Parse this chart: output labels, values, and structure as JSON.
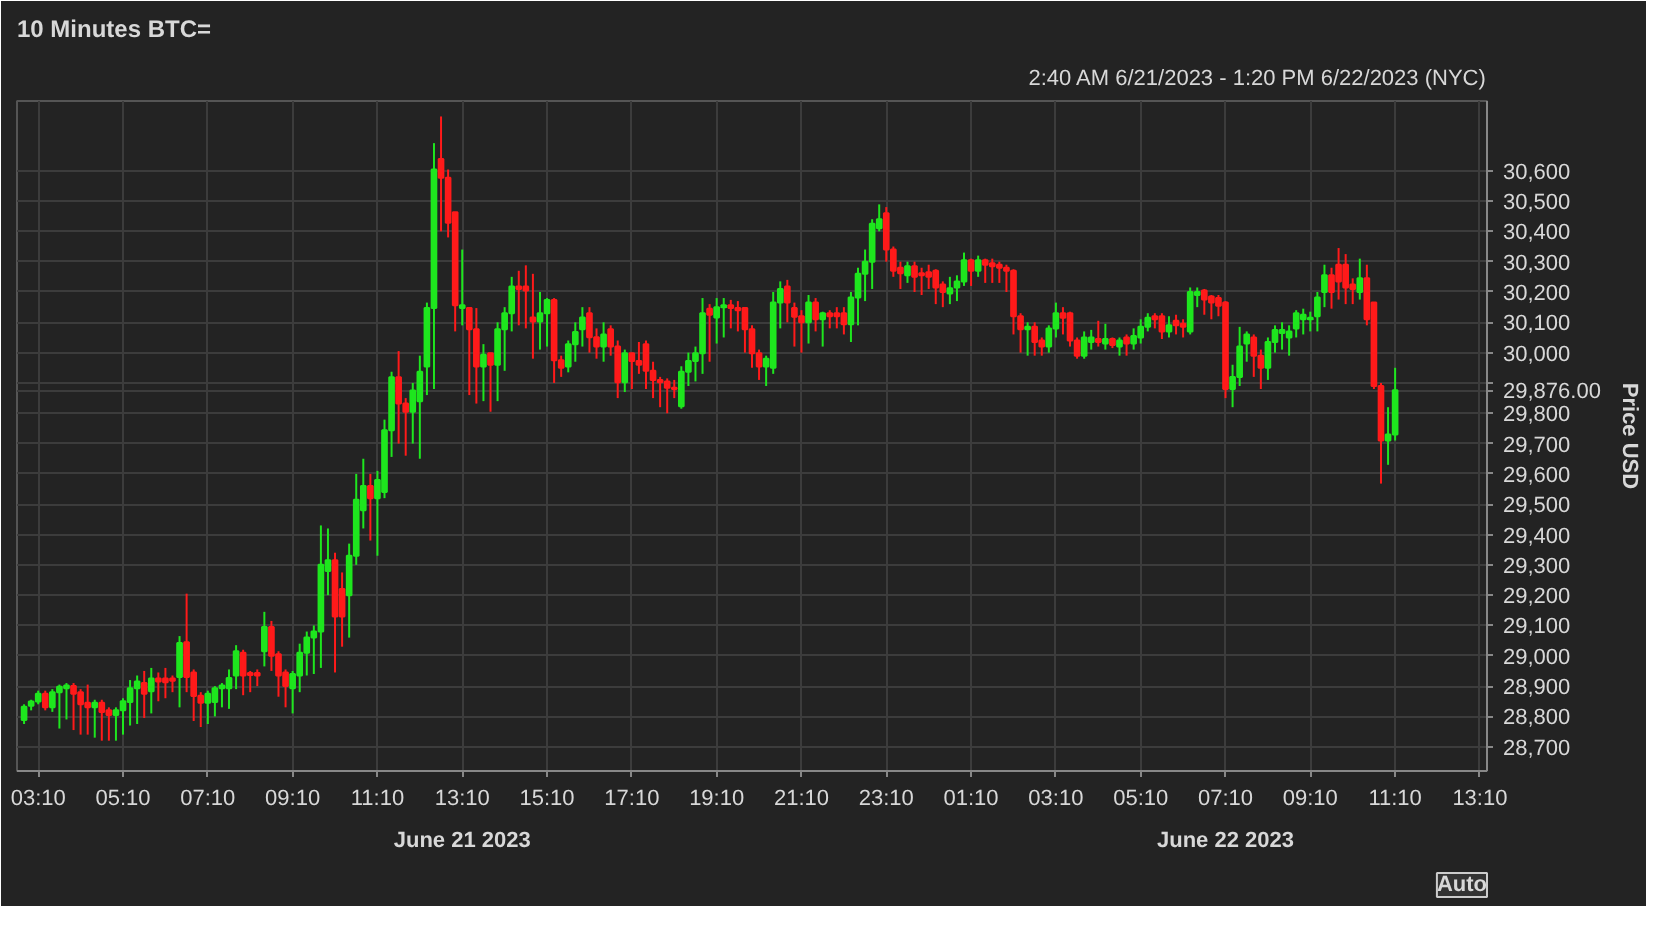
{
  "chart_data": {
    "type": "candlestick",
    "title": "10 Minutes BTC=",
    "subtitle": "2:40 AM 6/21/2023 - 1:20 PM 6/22/2023 (NYC)",
    "ylabel": "Price USD",
    "grid": true,
    "xlim": [
      "2023-06-21T02:40",
      "2023-06-22T13:20"
    ],
    "ylim": [
      28620,
      30830
    ],
    "xticks": [
      {
        "value": "2023-06-21T03:10",
        "label": "03:10"
      },
      {
        "value": "2023-06-21T05:10",
        "label": "05:10"
      },
      {
        "value": "2023-06-21T07:10",
        "label": "07:10"
      },
      {
        "value": "2023-06-21T09:10",
        "label": "09:10"
      },
      {
        "value": "2023-06-21T11:10",
        "label": "11:10"
      },
      {
        "value": "2023-06-21T13:10",
        "label": "13:10"
      },
      {
        "value": "2023-06-21T15:10",
        "label": "15:10"
      },
      {
        "value": "2023-06-21T17:10",
        "label": "17:10"
      },
      {
        "value": "2023-06-21T19:10",
        "label": "19:10"
      },
      {
        "value": "2023-06-21T21:10",
        "label": "21:10"
      },
      {
        "value": "2023-06-21T23:10",
        "label": "23:10"
      },
      {
        "value": "2023-06-22T01:10",
        "label": "01:10"
      },
      {
        "value": "2023-06-22T03:10",
        "label": "03:10"
      },
      {
        "value": "2023-06-22T05:10",
        "label": "05:10"
      },
      {
        "value": "2023-06-22T07:10",
        "label": "07:10"
      },
      {
        "value": "2023-06-22T09:10",
        "label": "09:10"
      },
      {
        "value": "2023-06-22T11:10",
        "label": "11:10"
      },
      {
        "value": "2023-06-22T13:10",
        "label": "13:10"
      }
    ],
    "yticks": [
      {
        "value": 28700,
        "label": "28,700"
      },
      {
        "value": 28800,
        "label": "28,800"
      },
      {
        "value": 28900,
        "label": "28,900"
      },
      {
        "value": 29000,
        "label": "29,000"
      },
      {
        "value": 29100,
        "label": "29,100"
      },
      {
        "value": 29200,
        "label": "29,200"
      },
      {
        "value": 29300,
        "label": "29,300"
      },
      {
        "value": 29400,
        "label": "29,400"
      },
      {
        "value": 29500,
        "label": "29,500"
      },
      {
        "value": 29600,
        "label": "29,600"
      },
      {
        "value": 29700,
        "label": "29,700"
      },
      {
        "value": 29800,
        "label": "29,800"
      },
      {
        "value": 29876,
        "label": "29,876.00"
      },
      {
        "value": 29900,
        "label": null
      },
      {
        "value": 30000,
        "label": "30,000"
      },
      {
        "value": 30100,
        "label": "30,100"
      },
      {
        "value": 30200,
        "label": "30,200"
      },
      {
        "value": 30300,
        "label": "30,300"
      },
      {
        "value": 30400,
        "label": "30,400"
      },
      {
        "value": 30500,
        "label": "30,500"
      },
      {
        "value": 30600,
        "label": "30,600"
      }
    ],
    "annotations": [
      "June 21 2023",
      "June 22 2023",
      "Auto"
    ],
    "x": [
      "2023-06-21T02:50",
      "2023-06-21T03:00",
      "2023-06-21T03:10",
      "2023-06-21T03:20",
      "2023-06-21T03:30",
      "2023-06-21T03:40",
      "2023-06-21T03:50",
      "2023-06-21T04:00",
      "2023-06-21T04:10",
      "2023-06-21T04:20",
      "2023-06-21T04:30",
      "2023-06-21T04:40",
      "2023-06-21T04:50",
      "2023-06-21T05:00",
      "2023-06-21T05:10",
      "2023-06-21T05:20",
      "2023-06-21T05:30",
      "2023-06-21T05:40",
      "2023-06-21T05:50",
      "2023-06-21T06:00",
      "2023-06-21T06:10",
      "2023-06-21T06:20",
      "2023-06-21T06:30",
      "2023-06-21T06:40",
      "2023-06-21T06:50",
      "2023-06-21T07:00",
      "2023-06-21T07:10",
      "2023-06-21T07:20",
      "2023-06-21T07:30",
      "2023-06-21T07:40",
      "2023-06-21T07:50",
      "2023-06-21T08:00",
      "2023-06-21T08:10",
      "2023-06-21T08:20",
      "2023-06-21T08:30",
      "2023-06-21T08:40",
      "2023-06-21T08:50",
      "2023-06-21T09:00",
      "2023-06-21T09:10",
      "2023-06-21T09:20",
      "2023-06-21T09:30",
      "2023-06-21T09:40",
      "2023-06-21T09:50",
      "2023-06-21T10:00",
      "2023-06-21T10:10",
      "2023-06-21T10:20",
      "2023-06-21T10:30",
      "2023-06-21T10:40",
      "2023-06-21T10:50",
      "2023-06-21T11:00",
      "2023-06-21T11:10",
      "2023-06-21T11:20",
      "2023-06-21T11:30",
      "2023-06-21T11:40",
      "2023-06-21T11:50",
      "2023-06-21T12:00",
      "2023-06-21T12:10",
      "2023-06-21T12:20",
      "2023-06-21T12:30",
      "2023-06-21T12:40",
      "2023-06-21T12:50",
      "2023-06-21T13:00",
      "2023-06-21T13:10",
      "2023-06-21T13:20",
      "2023-06-21T13:30",
      "2023-06-21T13:40",
      "2023-06-21T13:50",
      "2023-06-21T14:00",
      "2023-06-21T14:10",
      "2023-06-21T14:20",
      "2023-06-21T14:30",
      "2023-06-21T14:40",
      "2023-06-21T14:50",
      "2023-06-21T15:00",
      "2023-06-21T15:10",
      "2023-06-21T15:20",
      "2023-06-21T15:30",
      "2023-06-21T15:40",
      "2023-06-21T15:50",
      "2023-06-21T16:00",
      "2023-06-21T16:10",
      "2023-06-21T16:20",
      "2023-06-21T16:30",
      "2023-06-21T16:40",
      "2023-06-21T16:50",
      "2023-06-21T17:00",
      "2023-06-21T17:10",
      "2023-06-21T17:20",
      "2023-06-21T17:30",
      "2023-06-21T17:40",
      "2023-06-21T17:50",
      "2023-06-21T18:00",
      "2023-06-21T18:10",
      "2023-06-21T18:20",
      "2023-06-21T18:30",
      "2023-06-21T18:40",
      "2023-06-21T18:50",
      "2023-06-21T19:00",
      "2023-06-21T19:10",
      "2023-06-21T19:20",
      "2023-06-21T19:30",
      "2023-06-21T19:40",
      "2023-06-21T19:50",
      "2023-06-21T20:00",
      "2023-06-21T20:10",
      "2023-06-21T20:20",
      "2023-06-21T20:30",
      "2023-06-21T20:40",
      "2023-06-21T20:50",
      "2023-06-21T21:00",
      "2023-06-21T21:10",
      "2023-06-21T21:20",
      "2023-06-21T21:30",
      "2023-06-21T21:40",
      "2023-06-21T21:50",
      "2023-06-21T22:00",
      "2023-06-21T22:10",
      "2023-06-21T22:20",
      "2023-06-21T22:30",
      "2023-06-21T22:40",
      "2023-06-21T22:50",
      "2023-06-21T23:00",
      "2023-06-21T23:10",
      "2023-06-21T23:20",
      "2023-06-21T23:30",
      "2023-06-21T23:40",
      "2023-06-21T23:50",
      "2023-06-22T00:00",
      "2023-06-22T00:10",
      "2023-06-22T00:20",
      "2023-06-22T00:30",
      "2023-06-22T00:40",
      "2023-06-22T00:50",
      "2023-06-22T01:00",
      "2023-06-22T01:10",
      "2023-06-22T01:20",
      "2023-06-22T01:30",
      "2023-06-22T01:40",
      "2023-06-22T01:50",
      "2023-06-22T02:00",
      "2023-06-22T02:10",
      "2023-06-22T02:20",
      "2023-06-22T02:30",
      "2023-06-22T02:40",
      "2023-06-22T02:50",
      "2023-06-22T03:00",
      "2023-06-22T03:10",
      "2023-06-22T03:20",
      "2023-06-22T03:30",
      "2023-06-22T03:40",
      "2023-06-22T03:50",
      "2023-06-22T04:00",
      "2023-06-22T04:10",
      "2023-06-22T04:20",
      "2023-06-22T04:30",
      "2023-06-22T04:40",
      "2023-06-22T04:50",
      "2023-06-22T05:00",
      "2023-06-22T05:10",
      "2023-06-22T05:20",
      "2023-06-22T05:30",
      "2023-06-22T05:40",
      "2023-06-22T05:50",
      "2023-06-22T06:00",
      "2023-06-22T06:10",
      "2023-06-22T06:20",
      "2023-06-22T06:30",
      "2023-06-22T06:40",
      "2023-06-22T06:50",
      "2023-06-22T07:00",
      "2023-06-22T07:10",
      "2023-06-22T07:20",
      "2023-06-22T07:30",
      "2023-06-22T07:40",
      "2023-06-22T07:50",
      "2023-06-22T08:00",
      "2023-06-22T08:10",
      "2023-06-22T08:20",
      "2023-06-22T08:30",
      "2023-06-22T08:40",
      "2023-06-22T08:50",
      "2023-06-22T09:00",
      "2023-06-22T09:10",
      "2023-06-22T09:20",
      "2023-06-22T09:30",
      "2023-06-22T09:40",
      "2023-06-22T09:50",
      "2023-06-22T10:00",
      "2023-06-22T10:10",
      "2023-06-22T10:20",
      "2023-06-22T10:30",
      "2023-06-22T10:40",
      "2023-06-22T10:50",
      "2023-06-22T11:00",
      "2023-06-22T11:10"
    ],
    "ohlc": [
      [
        28788,
        28840,
        28775,
        28832
      ],
      [
        28835,
        28855,
        28820,
        28849
      ],
      [
        28849,
        28885,
        28840,
        28875
      ],
      [
        28875,
        28885,
        28820,
        28830
      ],
      [
        28830,
        28890,
        28815,
        28880
      ],
      [
        28880,
        28905,
        28760,
        28898
      ],
      [
        28893,
        28910,
        28790,
        28902
      ],
      [
        28900,
        28910,
        28755,
        28875
      ],
      [
        28880,
        28890,
        28740,
        28840
      ],
      [
        28845,
        28905,
        28740,
        28830
      ],
      [
        28830,
        28855,
        28730,
        28845
      ],
      [
        28845,
        28855,
        28720,
        28815
      ],
      [
        28820,
        28830,
        28720,
        28805
      ],
      [
        28805,
        28830,
        28720,
        28820
      ],
      [
        28820,
        28860,
        28740,
        28850
      ],
      [
        28848,
        28920,
        28770,
        28893
      ],
      [
        28893,
        28935,
        28775,
        28915
      ],
      [
        28910,
        28950,
        28795,
        28875
      ],
      [
        28883,
        28960,
        28810,
        28925
      ],
      [
        28925,
        28945,
        28850,
        28915
      ],
      [
        28925,
        28960,
        28860,
        28913
      ],
      [
        28925,
        28935,
        28880,
        28918
      ],
      [
        28930,
        29065,
        28830,
        29042
      ],
      [
        29045,
        29205,
        28880,
        28930
      ],
      [
        28945,
        28955,
        28785,
        28867
      ],
      [
        28868,
        28880,
        28765,
        28845
      ],
      [
        28845,
        28885,
        28775,
        28875
      ],
      [
        28848,
        28900,
        28800,
        28893
      ],
      [
        28893,
        28910,
        28830,
        28902
      ],
      [
        28893,
        28955,
        28825,
        28927
      ],
      [
        28935,
        29035,
        28890,
        29015
      ],
      [
        29010,
        29020,
        28870,
        28935
      ],
      [
        28943,
        28950,
        28880,
        28937
      ],
      [
        28943,
        28955,
        28900,
        28935
      ],
      [
        29015,
        29145,
        28965,
        29095
      ],
      [
        29095,
        29115,
        28950,
        29000
      ],
      [
        29005,
        29015,
        28865,
        28935
      ],
      [
        28945,
        28955,
        28830,
        28900
      ],
      [
        28893,
        28950,
        28810,
        28940
      ],
      [
        28935,
        29040,
        28880,
        29010
      ],
      [
        29010,
        29080,
        28935,
        29060
      ],
      [
        29060,
        29100,
        28940,
        29080
      ],
      [
        29080,
        29430,
        28960,
        29300
      ],
      [
        29280,
        29420,
        29200,
        29315
      ],
      [
        29315,
        29340,
        28945,
        29130
      ],
      [
        29220,
        29275,
        29030,
        29130
      ],
      [
        29200,
        29370,
        29060,
        29330
      ],
      [
        29330,
        29600,
        29300,
        29515
      ],
      [
        29480,
        29650,
        29420,
        29560
      ],
      [
        29560,
        29600,
        29380,
        29520
      ],
      [
        29520,
        29610,
        29330,
        29580
      ],
      [
        29540,
        29779,
        29520,
        29744
      ],
      [
        29744,
        29937,
        29656,
        29919
      ],
      [
        29919,
        30005,
        29700,
        29832
      ],
      [
        29832,
        29850,
        29660,
        29805
      ],
      [
        29805,
        29900,
        29700,
        29875
      ],
      [
        29840,
        29990,
        29650,
        29937
      ],
      [
        29954,
        30165,
        29860,
        30147
      ],
      [
        30147,
        30691,
        29880,
        30604
      ],
      [
        30639,
        30779,
        30400,
        30577
      ],
      [
        30577,
        30604,
        30380,
        30428
      ],
      [
        30463,
        30463,
        30070,
        30156
      ],
      [
        30147,
        30340,
        30090,
        30156
      ],
      [
        30147,
        30147,
        29860,
        30077
      ],
      [
        30077,
        30147,
        29832,
        29954
      ],
      [
        29954,
        30028,
        29840,
        29993
      ],
      [
        29998,
        30000,
        29805,
        29960
      ],
      [
        29960,
        30100,
        29840,
        30077
      ],
      [
        30077,
        30150,
        29940,
        30130
      ],
      [
        30130,
        30250,
        30070,
        30218
      ],
      [
        30218,
        30270,
        30090,
        30210
      ],
      [
        30218,
        30288,
        30080,
        30205
      ],
      [
        30116,
        30260,
        29980,
        30103
      ],
      [
        30103,
        30200,
        30010,
        30130
      ],
      [
        30130,
        30180,
        30020,
        30174
      ],
      [
        30174,
        30180,
        29900,
        29975
      ],
      [
        29975,
        29990,
        29920,
        29950
      ],
      [
        29954,
        30040,
        29935,
        30028
      ],
      [
        30028,
        30100,
        29970,
        30068
      ],
      [
        30077,
        30150,
        30020,
        30116
      ],
      [
        30130,
        30150,
        30000,
        30051
      ],
      [
        30051,
        30080,
        29980,
        30020
      ],
      [
        30020,
        30100,
        29970,
        30060
      ],
      [
        30077,
        30090,
        29990,
        30020
      ],
      [
        30020,
        30040,
        29850,
        29902
      ],
      [
        29902,
        30010,
        29870,
        29998
      ],
      [
        29998,
        30000,
        29880,
        29972
      ],
      [
        29972,
        30035,
        29930,
        29960
      ],
      [
        30028,
        30040,
        29880,
        29940
      ],
      [
        29940,
        29970,
        29850,
        29910
      ],
      [
        29910,
        29920,
        29820,
        29902
      ],
      [
        29905,
        29915,
        29800,
        29884
      ],
      [
        29884,
        29910,
        29850,
        29880
      ],
      [
        29823,
        29955,
        29815,
        29937
      ],
      [
        29937,
        30000,
        29890,
        29972
      ],
      [
        29972,
        30020,
        29905,
        29998
      ],
      [
        29998,
        30180,
        29930,
        30130
      ],
      [
        30145,
        30160,
        29970,
        30125
      ],
      [
        30116,
        30180,
        30030,
        30150
      ],
      [
        30150,
        30180,
        30050,
        30156
      ],
      [
        30156,
        30174,
        30080,
        30147
      ],
      [
        30147,
        30170,
        30070,
        30140
      ],
      [
        30147,
        30150,
        30000,
        30077
      ],
      [
        30077,
        30090,
        29950,
        29998
      ],
      [
        29998,
        30010,
        29910,
        29954
      ],
      [
        29954,
        29990,
        29890,
        29980
      ],
      [
        29950,
        30200,
        29930,
        30165
      ],
      [
        30165,
        30235,
        30080,
        30210
      ],
      [
        30218,
        30240,
        30100,
        30165
      ],
      [
        30147,
        30165,
        30020,
        30118
      ],
      [
        30120,
        30140,
        30000,
        30100
      ],
      [
        30100,
        30190,
        30030,
        30165
      ],
      [
        30165,
        30180,
        30070,
        30110
      ],
      [
        30110,
        30135,
        30020,
        30130
      ],
      [
        30130,
        30140,
        30080,
        30120
      ],
      [
        30130,
        30150,
        30080,
        30120
      ],
      [
        30130,
        30150,
        30060,
        30094
      ],
      [
        30094,
        30200,
        30035,
        30182
      ],
      [
        30182,
        30280,
        30090,
        30260
      ],
      [
        30260,
        30340,
        30170,
        30300
      ],
      [
        30300,
        30440,
        30210,
        30425
      ],
      [
        30410,
        30489,
        30400,
        30440
      ],
      [
        30460,
        30480,
        30300,
        30340
      ],
      [
        30340,
        30350,
        30250,
        30270
      ],
      [
        30280,
        30300,
        30210,
        30262
      ],
      [
        30255,
        30300,
        30230,
        30285
      ],
      [
        30285,
        30300,
        30200,
        30250
      ],
      [
        30262,
        30280,
        30190,
        30255
      ],
      [
        30265,
        30290,
        30210,
        30250
      ],
      [
        30270,
        30275,
        30160,
        30215
      ],
      [
        30225,
        30235,
        30150,
        30200
      ],
      [
        30195,
        30250,
        30160,
        30212
      ],
      [
        30215,
        30255,
        30170,
        30235
      ],
      [
        30235,
        30330,
        30220,
        30305
      ],
      [
        30305,
        30310,
        30220,
        30270
      ],
      [
        30270,
        30320,
        30250,
        30305
      ],
      [
        30305,
        30310,
        30230,
        30290
      ],
      [
        30295,
        30310,
        30230,
        30285
      ],
      [
        30290,
        30300,
        30230,
        30280
      ],
      [
        30280,
        30290,
        30200,
        30270
      ],
      [
        30270,
        30275,
        30060,
        30120
      ],
      [
        30120,
        30130,
        30000,
        30077
      ],
      [
        30077,
        30100,
        29990,
        30085
      ],
      [
        30085,
        30100,
        29990,
        30035
      ],
      [
        30040,
        30050,
        29990,
        30020
      ],
      [
        30020,
        30090,
        30000,
        30080
      ],
      [
        30080,
        30165,
        30050,
        30130
      ],
      [
        30130,
        30150,
        30060,
        30115
      ],
      [
        30130,
        30135,
        30020,
        30040
      ],
      [
        30040,
        30050,
        29980,
        29990
      ],
      [
        29990,
        30070,
        29980,
        30050
      ],
      [
        30035,
        30075,
        30010,
        30050
      ],
      [
        30045,
        30105,
        30020,
        30035
      ],
      [
        30030,
        30095,
        30010,
        30045
      ],
      [
        30045,
        30050,
        30015,
        30025
      ],
      [
        30020,
        30050,
        29990,
        30040
      ],
      [
        30050,
        30060,
        29990,
        30030
      ],
      [
        30030,
        30080,
        30010,
        30055
      ],
      [
        30050,
        30110,
        30030,
        30085
      ],
      [
        30085,
        30130,
        30070,
        30115
      ],
      [
        30120,
        30130,
        30080,
        30110
      ],
      [
        30120,
        30130,
        30045,
        30070
      ],
      [
        30070,
        30120,
        30050,
        30090
      ],
      [
        30105,
        30125,
        30060,
        30090
      ],
      [
        30095,
        30110,
        30050,
        30085
      ],
      [
        30070,
        30215,
        30060,
        30200
      ],
      [
        30190,
        30215,
        30150,
        30200
      ],
      [
        30205,
        30210,
        30125,
        30175
      ],
      [
        30185,
        30190,
        30110,
        30165
      ],
      [
        30180,
        30190,
        30120,
        30155
      ],
      [
        30165,
        30170,
        29850,
        29880
      ],
      [
        29880,
        29960,
        29820,
        29920
      ],
      [
        29920,
        30085,
        29890,
        30020
      ],
      [
        30030,
        30070,
        29970,
        30060
      ],
      [
        30050,
        30060,
        29920,
        29990
      ],
      [
        29990,
        30010,
        29880,
        29950
      ],
      [
        29950,
        30050,
        29910,
        30035
      ],
      [
        30035,
        30090,
        30000,
        30075
      ],
      [
        30065,
        30100,
        30010,
        30075
      ],
      [
        30050,
        30090,
        29990,
        30070
      ],
      [
        30080,
        30140,
        30050,
        30130
      ],
      [
        30110,
        30145,
        30060,
        30125
      ],
      [
        30110,
        30135,
        30070,
        30115
      ],
      [
        30120,
        30200,
        30070,
        30182
      ],
      [
        30200,
        30290,
        30150,
        30255
      ],
      [
        30255,
        30280,
        30145,
        30200
      ],
      [
        30290,
        30345,
        30175,
        30235
      ],
      [
        30290,
        30325,
        30160,
        30215
      ],
      [
        30225,
        30245,
        30160,
        30210
      ],
      [
        30200,
        30310,
        30175,
        30245
      ],
      [
        30245,
        30290,
        30090,
        30110
      ],
      [
        30165,
        30165,
        29880,
        29890
      ],
      [
        29890,
        29900,
        29568,
        29710
      ],
      [
        29710,
        29820,
        29630,
        29730
      ],
      [
        29730,
        29950,
        29710,
        29876
      ]
    ]
  }
}
